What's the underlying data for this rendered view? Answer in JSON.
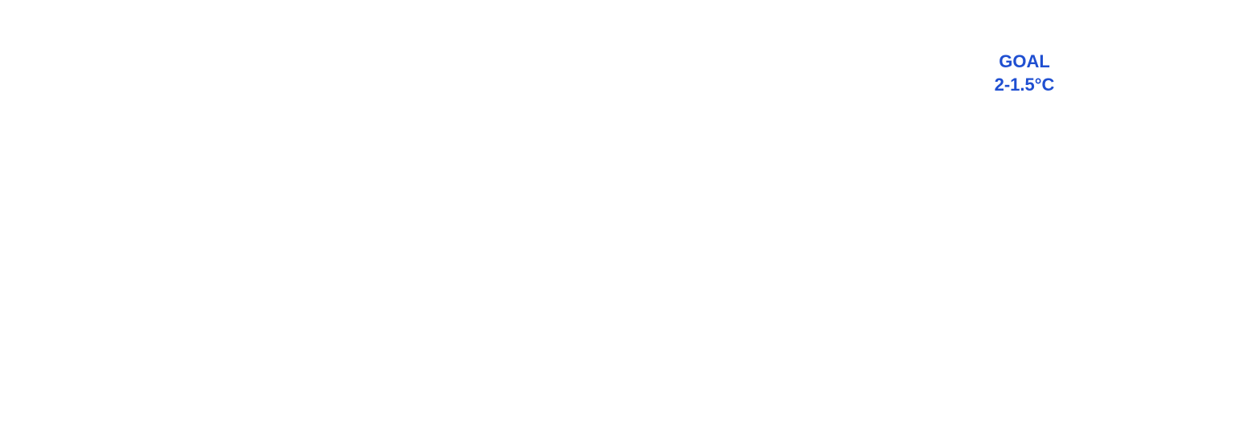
{
  "goal": {
    "title": "GOAL",
    "value": "2-1.5°C",
    "color": "#1f4fd1"
  }
}
